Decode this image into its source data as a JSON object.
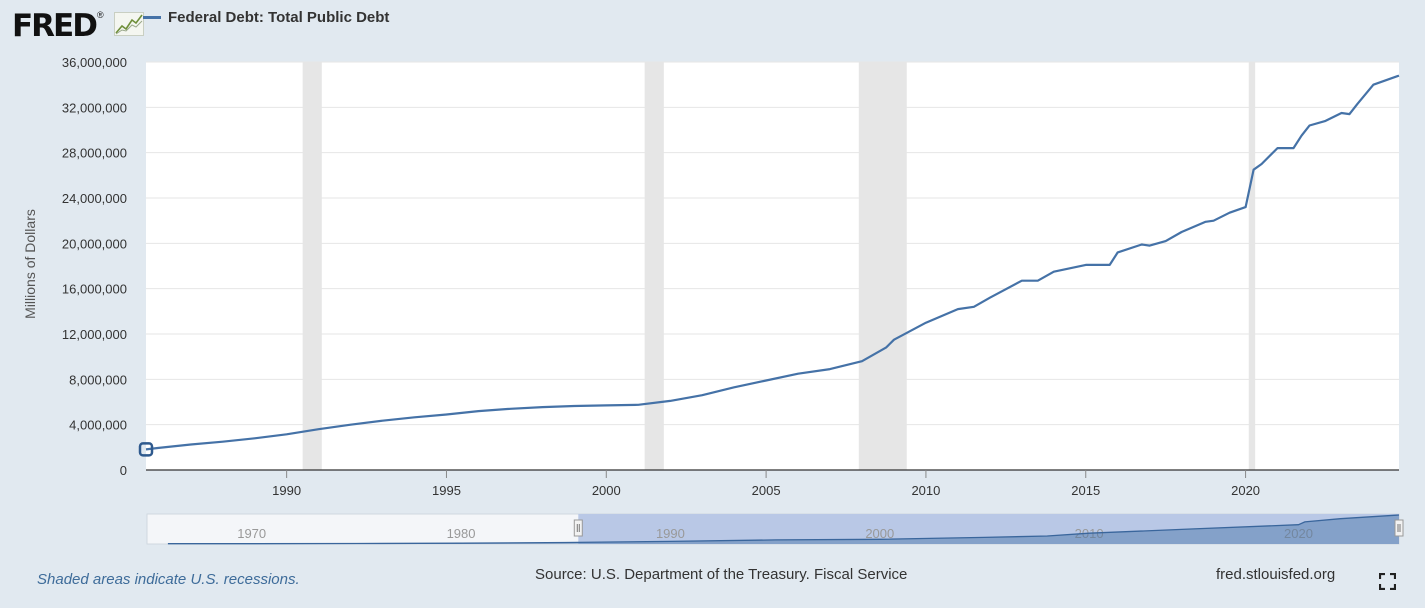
{
  "header": {
    "logo_text": "FRED",
    "logo_mark": "®",
    "legend_label": "Federal Debt: Total Public Debt",
    "series_color": "#4572a7"
  },
  "chart_data": {
    "type": "line",
    "title": "",
    "ylabel": "Millions of Dollars",
    "xlabel": "",
    "ylim": [
      0,
      36000000
    ],
    "xlim": [
      1985.6,
      2024.8
    ],
    "y_ticks": [
      0,
      4000000,
      8000000,
      12000000,
      16000000,
      20000000,
      24000000,
      28000000,
      32000000,
      36000000
    ],
    "y_tick_labels": [
      "0",
      "4,000,000",
      "8,000,000",
      "12,000,000",
      "16,000,000",
      "20,000,000",
      "24,000,000",
      "28,000,000",
      "32,000,000",
      "36,000,000"
    ],
    "x_ticks": [
      1990,
      1995,
      2000,
      2005,
      2010,
      2015,
      2020
    ],
    "x_tick_labels": [
      "1990",
      "1995",
      "2000",
      "2005",
      "2010",
      "2015",
      "2020"
    ],
    "grid": true,
    "recessions": [
      [
        1990.5,
        1991.1
      ],
      [
        2001.2,
        2001.8
      ],
      [
        2007.9,
        2009.4
      ],
      [
        2020.1,
        2020.3
      ]
    ],
    "series": [
      {
        "name": "Federal Debt: Total Public Debt",
        "color": "#4572a7",
        "x": [
          1985.6,
          1986,
          1987,
          1988,
          1989,
          1990,
          1991,
          1992,
          1993,
          1994,
          1995,
          1996,
          1997,
          1998,
          1999,
          2000,
          2001,
          2002,
          2003,
          2004,
          2005,
          2006,
          2007,
          2008,
          2008.75,
          2009,
          2010,
          2011,
          2011.5,
          2012,
          2013,
          2013.5,
          2014,
          2015,
          2015.75,
          2016,
          2016.75,
          2017,
          2017.5,
          2018,
          2018.75,
          2019,
          2019.5,
          2020,
          2020.25,
          2020.5,
          2021,
          2021.5,
          2021.75,
          2022,
          2022.5,
          2023,
          2023.25,
          2023.5,
          2024,
          2024.8
        ],
        "y": [
          1820000,
          1950000,
          2250000,
          2500000,
          2800000,
          3150000,
          3600000,
          4000000,
          4350000,
          4650000,
          4900000,
          5200000,
          5400000,
          5550000,
          5650000,
          5700000,
          5750000,
          6100000,
          6600000,
          7300000,
          7900000,
          8500000,
          8900000,
          9600000,
          10800000,
          11500000,
          13000000,
          14200000,
          14400000,
          15200000,
          16700000,
          16700000,
          17500000,
          18100000,
          18100000,
          19200000,
          19900000,
          19800000,
          20200000,
          21000000,
          21900000,
          22000000,
          22700000,
          23200000,
          26500000,
          27000000,
          28400000,
          28400000,
          29500000,
          30400000,
          30800000,
          31500000,
          31400000,
          32300000,
          34000000,
          34800000
        ]
      }
    ],
    "navigator": {
      "xlim": [
        1965,
        2024.8
      ],
      "tick_labels": [
        "1970",
        "1980",
        "1990",
        "2000",
        "2010",
        "2020"
      ],
      "tick_values": [
        1970,
        1980,
        1990,
        2000,
        2010,
        2020
      ],
      "selected_range": [
        1985.6,
        2024.8
      ],
      "x": [
        1966,
        1970,
        1975,
        1980,
        1985,
        1990,
        1995,
        2000,
        2005,
        2008,
        2010,
        2015,
        2020,
        2020.3,
        2022,
        2024.8
      ],
      "y": [
        320000,
        370000,
        540000,
        910000,
        1820000,
        3150000,
        4900000,
        5700000,
        7900000,
        9600000,
        13000000,
        18100000,
        23200000,
        26500000,
        30400000,
        34800000
      ]
    }
  },
  "footer": {
    "recession_note": "Shaded areas indicate U.S. recessions.",
    "source": "Source: U.S. Department of the Treasury. Fiscal Service",
    "url": "fred.stlouisfed.org"
  }
}
